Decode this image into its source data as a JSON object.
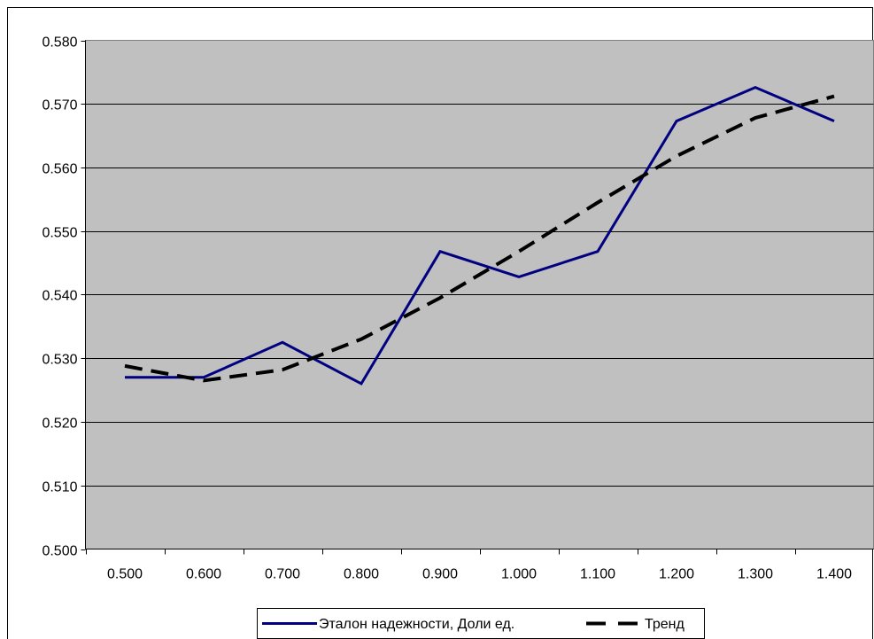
{
  "chart_data": {
    "type": "line",
    "title": "",
    "xlabel": "",
    "ylabel": "",
    "categories": [
      "0.500",
      "0.600",
      "0.700",
      "0.800",
      "0.900",
      "1.000",
      "1.100",
      "1.200",
      "1.300",
      "1.400"
    ],
    "y_ticks": [
      "0.500",
      "0.510",
      "0.520",
      "0.530",
      "0.540",
      "0.550",
      "0.560",
      "0.570",
      "0.580"
    ],
    "ylim": [
      0.5,
      0.58
    ],
    "grid": "horizontal",
    "legend_position": "bottom",
    "plot_background": "#c0c0c0",
    "series": [
      {
        "name": "Эталон надежности, Доли ед.",
        "color": "#000080",
        "style": "solid",
        "values": [
          0.527,
          0.527,
          0.5325,
          0.526,
          0.5468,
          0.5428,
          0.5468,
          0.5673,
          0.5726,
          0.5673
        ]
      },
      {
        "name": "Тренд",
        "color": "#000000",
        "style": "dashed",
        "values": [
          0.5288,
          0.5265,
          0.5282,
          0.533,
          0.5395,
          0.5468,
          0.5545,
          0.5618,
          0.5678,
          0.5712
        ]
      }
    ]
  }
}
